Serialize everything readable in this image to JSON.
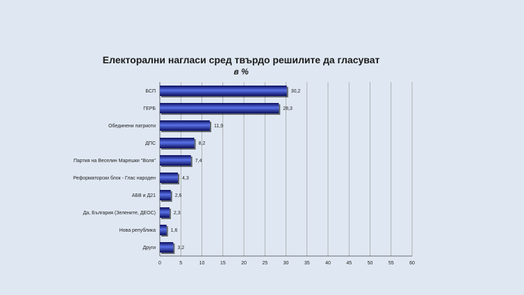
{
  "chart_data": {
    "type": "bar",
    "orientation": "horizontal",
    "title": "Електорални нагласи сред твърдо решилите да гласуват",
    "subtitle": "в %",
    "categories": [
      "БСП",
      "ГЕРБ",
      "Обединени патриоти",
      "ДПС",
      "Партия на Веселин Марешки \"Воля\"",
      "Реформаторски блок - Глас народен",
      "АБВ и Д21",
      "Да, България (Зелените, ДЕОС)",
      "Нова република",
      "Други"
    ],
    "values": [
      30.2,
      28.3,
      11.9,
      8.2,
      7.4,
      4.3,
      2.6,
      2.3,
      1.6,
      3.2
    ],
    "value_labels": [
      "30,2",
      "28,3",
      "11,9",
      "8,2",
      "7,4",
      "4,3",
      "2,6",
      "2,3",
      "1,6",
      "3,2"
    ],
    "xlim": [
      0,
      60
    ],
    "xticks": [
      0,
      5,
      10,
      15,
      20,
      25,
      30,
      35,
      40,
      45,
      50,
      55,
      60
    ],
    "grid": true,
    "colors": {
      "bar_dark": "#0a0e5c",
      "bar_light": "#5a72e8",
      "grid": "#999999",
      "background": "#dfe8f2"
    }
  }
}
